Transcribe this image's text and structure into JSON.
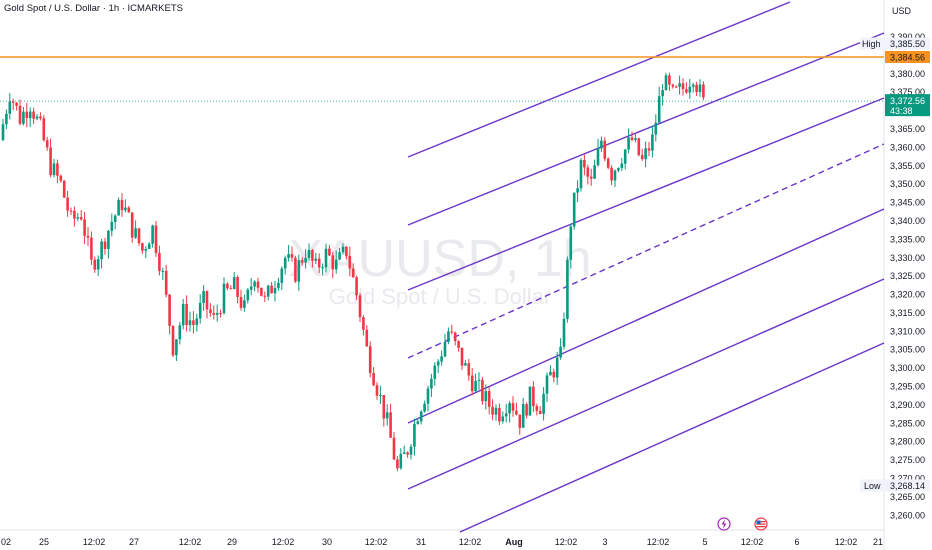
{
  "header": {
    "title": "Gold Spot / U.S. Dollar · 1h · ICMARKETS"
  },
  "watermark": {
    "symbol": "XAUUSD, 1h",
    "name": "Gold Spot / U.S. Dollar"
  },
  "price_axis": {
    "currency": "USD",
    "high_label": "High",
    "high_value": "3,385.50",
    "low_label": "Low",
    "low_value": "3,268.14",
    "resistance_value": "3,384.56",
    "last_price": "3,372.56",
    "countdown": "43:38"
  },
  "colors": {
    "up": "#089981",
    "down": "#f23645",
    "channel": "#6a35c9",
    "resistance": "#f7931e",
    "price_line": "#089981"
  },
  "chart_data": {
    "type": "candlestick",
    "title": "Gold Spot / U.S. Dollar · 1h · ICMARKETS",
    "symbol": "XAUUSD",
    "interval": "1h",
    "ylim": [
      3257,
      3400
    ],
    "y_ticks": [
      3260,
      3265,
      3270,
      3275,
      3280,
      3285,
      3290,
      3295,
      3300,
      3305,
      3310,
      3315,
      3320,
      3325,
      3330,
      3335,
      3340,
      3345,
      3350,
      3355,
      3360,
      3365,
      3370,
      3375,
      3380,
      3385,
      3390
    ],
    "x_ticks": [
      "02",
      "25",
      "12:02",
      "27",
      "12:02",
      "29",
      "12:02",
      "30",
      "12:02",
      "31",
      "12:02",
      "Aug",
      "12:02",
      "3",
      "12:02",
      "5",
      "12:02",
      "6",
      "12:02",
      "21"
    ],
    "ohlc_waypoints": [
      3362,
      3375,
      3368,
      3372,
      3365,
      3355,
      3350,
      3340,
      3342,
      3328,
      3333,
      3340,
      3345,
      3338,
      3332,
      3338,
      3325,
      3306,
      3315,
      3312,
      3318,
      3313,
      3320,
      3322,
      3316,
      3326,
      3318,
      3324,
      3330,
      3326,
      3332,
      3327,
      3331,
      3328,
      3332,
      3320,
      3305,
      3295,
      3285,
      3272,
      3278,
      3288,
      3295,
      3302,
      3310,
      3304,
      3298,
      3294,
      3290,
      3288,
      3292,
      3286,
      3292,
      3290,
      3298,
      3303,
      3340,
      3355,
      3350,
      3362,
      3353,
      3358,
      3362,
      3356,
      3362,
      3378,
      3374,
      3376,
      3380,
      3372
    ],
    "series": [
      {
        "name": "resistance",
        "value": 3384.56
      },
      {
        "name": "last price",
        "value": 3372.56
      }
    ],
    "annotations": [
      "High 3,385.50",
      "Low 3,268.14"
    ]
  }
}
